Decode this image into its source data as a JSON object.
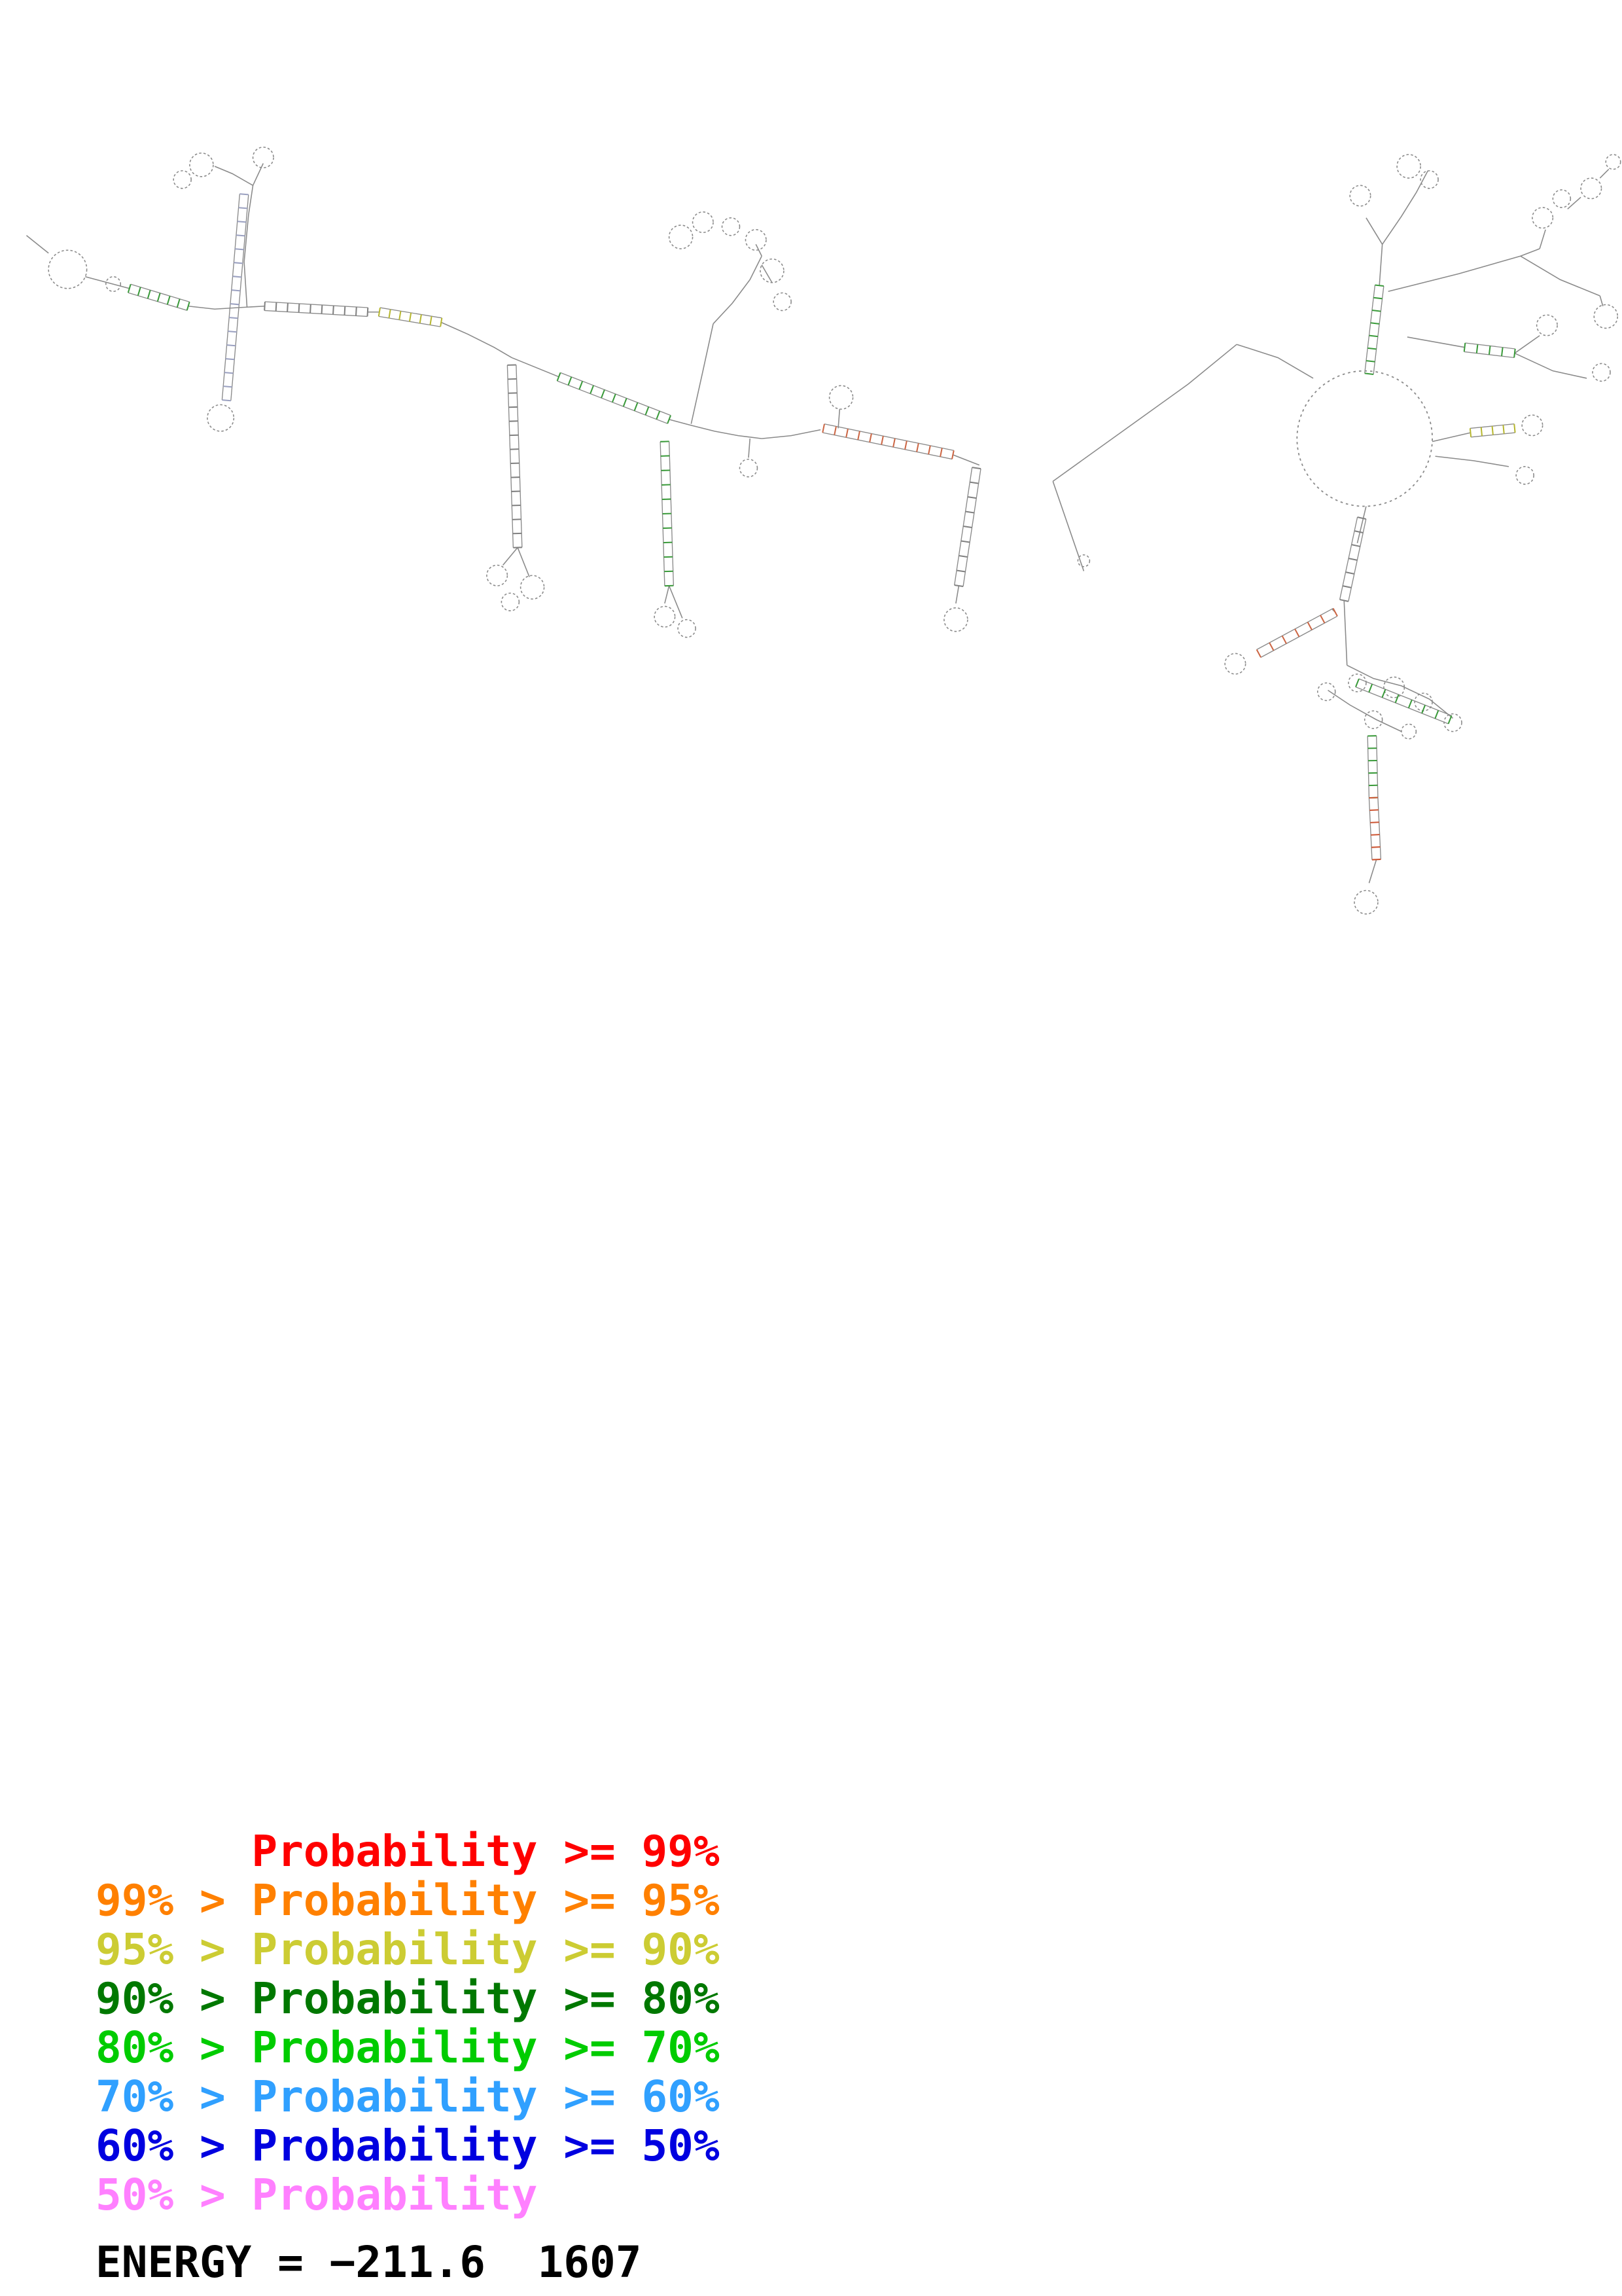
{
  "legend": {
    "items": [
      {
        "text": "      Probability >= 99%",
        "color": "#ff0000"
      },
      {
        "text": "99% > Probability >= 95%",
        "color": "#ff8000"
      },
      {
        "text": "95% > Probability >= 90%",
        "color": "#cccc33"
      },
      {
        "text": "90% > Probability >= 80%",
        "color": "#007800"
      },
      {
        "text": "80% > Probability >= 70%",
        "color": "#00cc00"
      },
      {
        "text": "70% > Probability >= 60%",
        "color": "#30a0ff"
      },
      {
        "text": "60% > Probability >= 50%",
        "color": "#0000e0"
      },
      {
        "text": "50% > Probability",
        "color": "#ff80ff"
      }
    ]
  },
  "energy": {
    "text": "ENERGY = −211.6  1607",
    "color": "#000000"
  },
  "diagram": {
    "stroke_color": "#8a8a8a",
    "paths": [
      "M18,160 L33,172",
      "M58,188 L88,196",
      "M128,208 L146,210 L162,209 L180,208",
      "M250,212 L258,212",
      "M300,219 L318,227 L336,236 L348,243",
      "M168,209 L166,178 L169,146 L172,126",
      "M172,126 L158,118 L146,113",
      "M172,126 L179,111",
      "M352,372 L342,384",
      "M352,372 L360,392",
      "M348,243 L380,256",
      "M455,398 L452,410",
      "M455,398 L464,420",
      "M470,288 L478,252 L485,220",
      "M485,220 L498,206 L510,190 L518,174",
      "M518,174 L514,166",
      "M525,192 L518,180",
      "M455,285 L470,289 L486,293 L502,296 L518,298",
      "M518,298 L538,296 L558,292",
      "M648,309 L666,316",
      "M510,298 L509,311",
      "M570,291 L571,278",
      "M652,398 L650,410",
      "M716,327 L737,388",
      "M716,327 L762,294 L808,261 L841,234",
      "M841,234 L869,243 L893,257",
      "M938,194 L940,166",
      "M940,166 L953,147 L963,131",
      "M963,131 L971,116",
      "M940,166 L929,148",
      "M944,198 L992,186 L1034,174 L1047,169",
      "M1047,169 L1051,156",
      "M1066,142 L1075,134",
      "M1088,121 L1094,115",
      "M1034,174 L1061,190 L1088,201",
      "M1088,201 L1090,208",
      "M957,229 L996,236",
      "M1030,240 L1047,228",
      "M1030,240 L1056,252 L1079,257",
      "M974,300 L1000,294",
      "M976,310 L1002,313 L1026,317",
      "M929,344 L923,369",
      "M914,408 L916,452",
      "M916,452 L934,461 L953,466 L972,475 L988,488",
      "M903,469 L918,479 L936,489 L953,497",
      "M936,584 L931,600",
      "M908,416 L906,414"
    ],
    "circles": [
      [
        46,
        183,
        13
      ],
      [
        77,
        193,
        5
      ],
      [
        137,
        112,
        8
      ],
      [
        124,
        122,
        6
      ],
      [
        179,
        107,
        7
      ],
      [
        150,
        284,
        9
      ],
      [
        338,
        391,
        7
      ],
      [
        362,
        399,
        8
      ],
      [
        347,
        409,
        6
      ],
      [
        452,
        419,
        7
      ],
      [
        467,
        427,
        6
      ],
      [
        463,
        161,
        8
      ],
      [
        478,
        151,
        7
      ],
      [
        497,
        154,
        6
      ],
      [
        514,
        163,
        7
      ],
      [
        525,
        184,
        8
      ],
      [
        532,
        205,
        6
      ],
      [
        509,
        318,
        6
      ],
      [
        572,
        270,
        8
      ],
      [
        650,
        421,
        8
      ],
      [
        737,
        381,
        4
      ],
      [
        958,
        113,
        8
      ],
      [
        972,
        122,
        6
      ],
      [
        925,
        133,
        7
      ],
      [
        1049,
        148,
        7
      ],
      [
        1062,
        135,
        6
      ],
      [
        1082,
        128,
        7
      ],
      [
        1097,
        110,
        5
      ],
      [
        1092,
        215,
        8
      ],
      [
        1052,
        221,
        7
      ],
      [
        1089,
        253,
        6
      ],
      [
        1042,
        289,
        7
      ],
      [
        1037,
        323,
        6
      ],
      [
        840,
        451,
        7
      ],
      [
        902,
        470,
        6
      ],
      [
        923,
        464,
        6
      ],
      [
        948,
        467,
        7
      ],
      [
        968,
        477,
        6
      ],
      [
        988,
        491,
        6
      ],
      [
        934,
        489,
        6
      ],
      [
        958,
        497,
        5
      ],
      [
        929,
        613,
        8
      ]
    ],
    "big_loop": [
      928,
      298,
      46
    ],
    "helices": [
      {
        "p": [
          88,
          196,
          128,
          208
        ],
        "n": 7,
        "c": "#3a9a3a"
      },
      {
        "p": [
          180,
          208,
          250,
          212
        ],
        "n": 10,
        "c": "#808080"
      },
      {
        "p": [
          258,
          212,
          300,
          219
        ],
        "n": 7,
        "c": "#b7b730"
      },
      {
        "p": [
          380,
          256,
          455,
          285
        ],
        "n": 11,
        "c": "#3a9a3a"
      },
      {
        "p": [
          560,
          291,
          648,
          309
        ],
        "n": 12,
        "c": "#cc6644"
      },
      {
        "p": [
          931,
          254,
          938,
          194
        ],
        "n": 8,
        "c": "#3a9a3a"
      },
      {
        "p": [
          926,
          352,
          914,
          408
        ],
        "n": 7,
        "c": "#808080"
      },
      {
        "p": [
          908,
          416,
          856,
          444
        ],
        "n": 7,
        "c": "#cc6644"
      },
      {
        "p": [
          933,
          500,
          934,
          542
        ],
        "n": 6,
        "c": "#3a9a3a"
      },
      {
        "p": [
          934,
          542,
          936,
          584
        ],
        "n": 6,
        "c": "#cc5533"
      },
      {
        "p": [
          1000,
          294,
          1030,
          291
        ],
        "n": 5,
        "c": "#b7b730"
      },
      {
        "p": [
          348,
          248,
          352,
          372
        ],
        "n": 14,
        "c": "#808080"
      },
      {
        "p": [
          452,
          300,
          455,
          398
        ],
        "n": 11,
        "c": "#3a9a3a"
      },
      {
        "p": [
          166,
          132,
          154,
          272
        ],
        "n": 16,
        "c": "#9aa0c0"
      },
      {
        "p": [
          996,
          236,
          1030,
          240
        ],
        "n": 5,
        "c": "#3a9a3a"
      },
      {
        "p": [
          923,
          464,
          986,
          489
        ],
        "n": 8,
        "c": "#3a9a3a"
      },
      {
        "p": [
          664,
          318,
          652,
          398
        ],
        "n": 9,
        "c": "#808080"
      }
    ]
  }
}
